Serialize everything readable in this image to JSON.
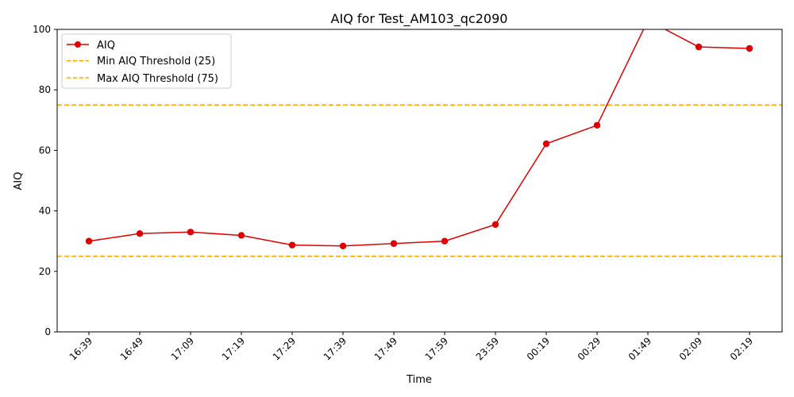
{
  "chart_data": {
    "type": "line",
    "title": "AIQ for Test_AM103_qc2090",
    "xlabel": "Time",
    "ylabel": "AIQ",
    "ylim": [
      0,
      100
    ],
    "yticks": [
      0,
      20,
      40,
      60,
      80,
      100
    ],
    "categories": [
      "16:39",
      "16:49",
      "17:09",
      "17:19",
      "17:29",
      "17:39",
      "17:49",
      "17:59",
      "23:59",
      "00:19",
      "00:29",
      "01:49",
      "02:09",
      "02:19"
    ],
    "series": [
      {
        "name": "AIQ",
        "color": "#e00000",
        "x": [
          "16:39",
          "16:49",
          "17:09",
          "17:19",
          "17:29",
          "17:39",
          "17:49",
          "17:59",
          "23:59",
          "00:19",
          "00:29",
          "01:49",
          "02:09",
          "02:19"
        ],
        "values": [
          30.0,
          32.5,
          33.0,
          31.9,
          28.7,
          28.4,
          29.2,
          30.0,
          35.5,
          62.2,
          68.3,
          103,
          94.2,
          93.7
        ]
      }
    ],
    "thresholds": [
      {
        "name": "Min AIQ Threshold (25)",
        "value": 25,
        "color": "#ffa500"
      },
      {
        "name": "Max AIQ Threshold (75)",
        "value": 75,
        "color": "#ffa500"
      }
    ],
    "legend_position": "top-left",
    "grid": false
  }
}
